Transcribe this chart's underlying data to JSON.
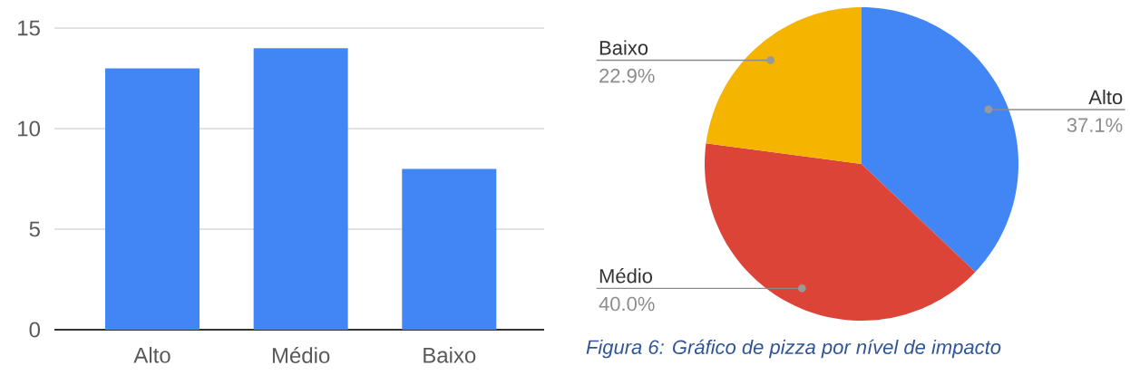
{
  "chart_data": [
    {
      "type": "bar",
      "categories": [
        "Alto",
        "Médio",
        "Baixo"
      ],
      "values": [
        13,
        14,
        8
      ],
      "color": "#4285f4",
      "ylim": [
        0,
        15
      ],
      "yticks": [
        0,
        5,
        10,
        15
      ],
      "grid": "y"
    },
    {
      "type": "pie",
      "categories": [
        "Alto",
        "Médio",
        "Baixo"
      ],
      "values": [
        37.1,
        40.0,
        22.9
      ],
      "value_labels": [
        "37.1%",
        "40.0%",
        "22.9%"
      ],
      "colors": [
        "#4285f4",
        "#db4437",
        "#f4b400"
      ],
      "annotations": [
        "Figura 6: Gráfico de pizza por nível de impacto"
      ]
    }
  ]
}
